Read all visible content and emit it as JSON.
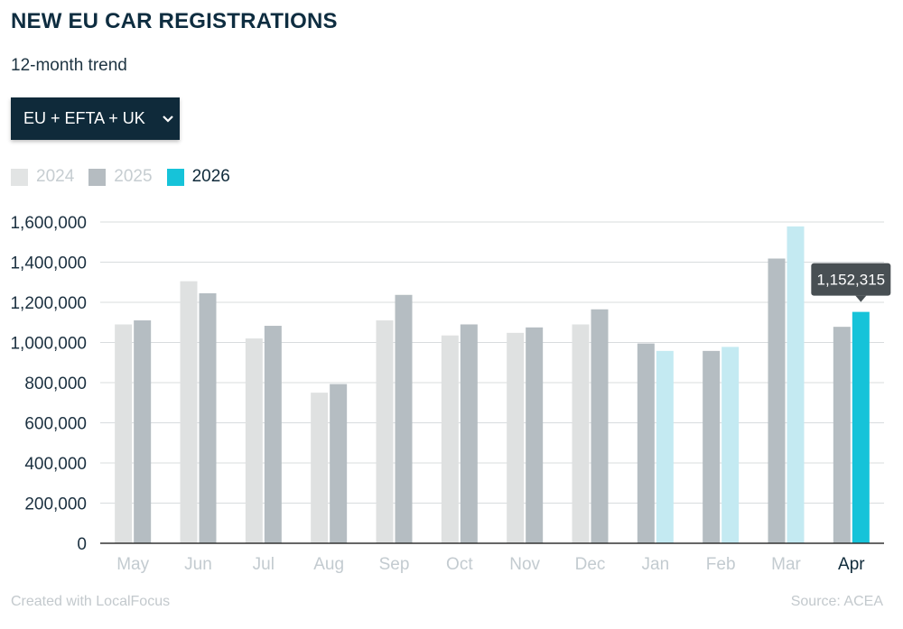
{
  "header": {
    "title": "NEW EU CAR REGISTRATIONS",
    "subtitle": "12-month trend"
  },
  "dropdown": {
    "selected": "EU + EFTA + UK",
    "icon": "chevron-down-icon"
  },
  "legend": [
    {
      "label": "2024",
      "color": "#e2e4e4",
      "active": false
    },
    {
      "label": "2025",
      "color": "#b5bcc1",
      "active": false
    },
    {
      "label": "2026",
      "color": "#16c3d9",
      "active": true
    }
  ],
  "colors": {
    "2024": "#dfe1e1",
    "2025": "#b5bdc2",
    "2026_light": "#c4eaf2",
    "2026": "#16c3d9",
    "grid": "#d8dcde",
    "axis": "#333333",
    "tick_active": "#0f2a3a",
    "tick_muted": "#c3cbd0",
    "tooltip_bg": "#484f53"
  },
  "chart_data": {
    "type": "bar",
    "categories": [
      "May",
      "Jun",
      "Jul",
      "Aug",
      "Sep",
      "Oct",
      "Nov",
      "Dec",
      "Jan",
      "Feb",
      "Mar",
      "Apr"
    ],
    "active_category": "Apr",
    "series": [
      {
        "name": "2024",
        "values": [
          1090000,
          1305000,
          1020000,
          750000,
          1110000,
          1035000,
          1048000,
          1090000,
          null,
          null,
          null,
          null
        ]
      },
      {
        "name": "2025",
        "values": [
          1110000,
          1245000,
          1083000,
          793000,
          1237000,
          1090000,
          1075000,
          1165000,
          995000,
          958000,
          1418000,
          1078000
        ]
      },
      {
        "name": "2026",
        "values": [
          null,
          null,
          null,
          null,
          null,
          null,
          null,
          null,
          958000,
          978000,
          1578000,
          1152315
        ]
      }
    ],
    "yticks": [
      0,
      200000,
      400000,
      600000,
      800000,
      1000000,
      1200000,
      1400000,
      1600000
    ],
    "ytick_labels": [
      "0",
      "200,000",
      "400,000",
      "600,000",
      "800,000",
      "1,000,000",
      "1,200,000",
      "1,400,000",
      "1,600,000"
    ],
    "ylim": [
      0,
      1600000
    ],
    "grid": true,
    "legend_position": "top-left",
    "tooltip": {
      "category": "Apr",
      "series": "2026",
      "text": "1,152,315"
    }
  },
  "footer": {
    "credit": "Created with LocalFocus",
    "source": "Source: ACEA"
  }
}
